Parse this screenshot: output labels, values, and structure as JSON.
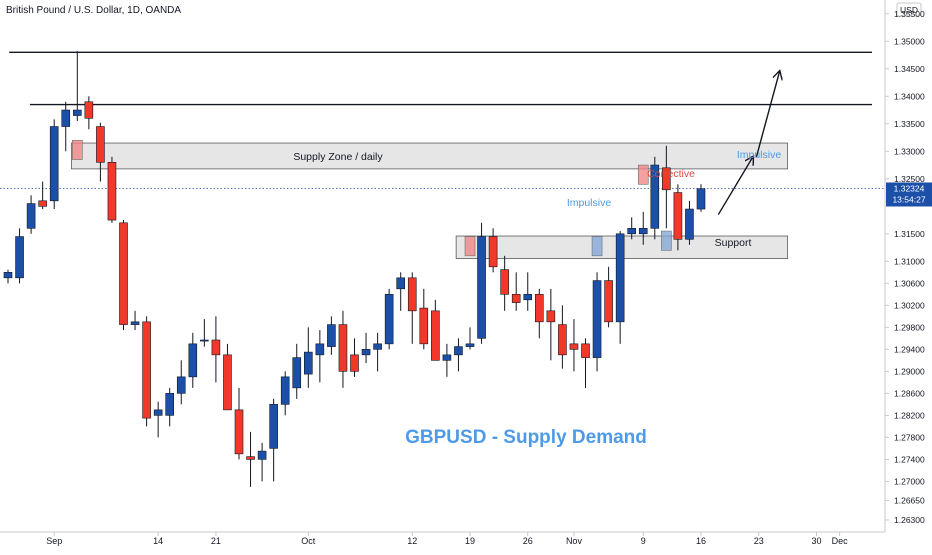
{
  "header": {
    "symbol_title": "British Pound / U.S. Dollar, 1D, OANDA",
    "currency": "USD"
  },
  "price_badge": {
    "price": "1.32324",
    "countdown": "13:54:27"
  },
  "zones": {
    "supply_label": "Supply Zone / daily",
    "support_label": "Support"
  },
  "annotations": {
    "impulsive_left": "Impulsive",
    "corrective": "Corrective",
    "impulsive_right": "Impulsive",
    "main_title": "GBPUSD - Supply Demand"
  },
  "colors": {
    "bull": "#1c50a8",
    "bear": "#f0392b",
    "wick": "#131722",
    "annotation_blue": "#4d9be8",
    "annotation_red": "#e0473c",
    "price_badge": "#1c50a8",
    "zone_fill": "#e2e2e2",
    "zone_border": "#5a5a5a"
  },
  "chart_data": {
    "type": "candlestick",
    "ylim": [
      1.2608,
      1.3575
    ],
    "y_ticks": [
      "1.35500",
      "1.35000",
      "1.34500",
      "1.34000",
      "1.33500",
      "1.33000",
      "1.32500",
      "1.32324",
      "1.31500",
      "1.31000",
      "1.30600",
      "1.30200",
      "1.29800",
      "1.29400",
      "1.29000",
      "1.28600",
      "1.28200",
      "1.27800",
      "1.27400",
      "1.27000",
      "1.26650",
      "1.26300"
    ],
    "x_labels": [
      {
        "label": "Sep",
        "day": 4
      },
      {
        "label": "14",
        "day": 13
      },
      {
        "label": "21",
        "day": 18
      },
      {
        "label": "Oct",
        "day": 26
      },
      {
        "label": "12",
        "day": 35
      },
      {
        "label": "19",
        "day": 40
      },
      {
        "label": "26",
        "day": 45
      },
      {
        "label": "Nov",
        "day": 49
      },
      {
        "label": "9",
        "day": 55
      },
      {
        "label": "16",
        "day": 60
      },
      {
        "label": "23",
        "day": 65
      },
      {
        "label": "30",
        "day": 70
      },
      {
        "label": "Dec",
        "day": 72
      }
    ],
    "horizontal_lines": [
      1.348,
      1.3385
    ],
    "current_price": 1.32324,
    "supply_zone": {
      "day_start": 5.5,
      "day_end": 67.5,
      "high": 1.3315,
      "low": 1.3268
    },
    "support_zone": {
      "day_start": 38.8,
      "day_end": 67.5,
      "high": 1.3146,
      "low": 1.3105
    },
    "highlight_boxes": [
      {
        "day": 6,
        "open": 1.332,
        "close": 1.3285,
        "dir": "bear"
      },
      {
        "day": 40,
        "open": 1.3145,
        "close": 1.311,
        "dir": "bear"
      },
      {
        "day": 51,
        "open": 1.311,
        "close": 1.3145,
        "dir": "bull"
      },
      {
        "day": 55,
        "open": 1.3275,
        "close": 1.324,
        "dir": "bear"
      },
      {
        "day": 57,
        "open": 1.312,
        "close": 1.3155,
        "dir": "bull"
      }
    ],
    "candles": [
      {
        "d": 0,
        "o": 1.307,
        "h": 1.3085,
        "l": 1.306,
        "c": 1.308
      },
      {
        "d": 1,
        "o": 1.307,
        "h": 1.316,
        "l": 1.306,
        "c": 1.3145
      },
      {
        "d": 2,
        "o": 1.316,
        "h": 1.322,
        "l": 1.315,
        "c": 1.3205
      },
      {
        "d": 3,
        "o": 1.321,
        "h": 1.3245,
        "l": 1.3195,
        "c": 1.32
      },
      {
        "d": 4,
        "o": 1.321,
        "h": 1.3358,
        "l": 1.3195,
        "c": 1.3345
      },
      {
        "d": 5,
        "o": 1.3345,
        "h": 1.339,
        "l": 1.33,
        "c": 1.3375
      },
      {
        "d": 6,
        "o": 1.3365,
        "h": 1.3482,
        "l": 1.3355,
        "c": 1.3375
      },
      {
        "d": 7,
        "o": 1.339,
        "h": 1.34,
        "l": 1.334,
        "c": 1.336
      },
      {
        "d": 8,
        "o": 1.3345,
        "h": 1.3352,
        "l": 1.3245,
        "c": 1.328
      },
      {
        "d": 9,
        "o": 1.328,
        "h": 1.329,
        "l": 1.317,
        "c": 1.3175
      },
      {
        "d": 10,
        "o": 1.317,
        "h": 1.3175,
        "l": 1.2975,
        "c": 1.2985
      },
      {
        "d": 11,
        "o": 1.2985,
        "h": 1.301,
        "l": 1.2975,
        "c": 1.299
      },
      {
        "d": 12,
        "o": 1.299,
        "h": 1.3,
        "l": 1.28,
        "c": 1.2815
      },
      {
        "d": 13,
        "o": 1.282,
        "h": 1.2845,
        "l": 1.278,
        "c": 1.283
      },
      {
        "d": 14,
        "o": 1.282,
        "h": 1.287,
        "l": 1.28,
        "c": 1.286
      },
      {
        "d": 15,
        "o": 1.286,
        "h": 1.292,
        "l": 1.284,
        "c": 1.289
      },
      {
        "d": 16,
        "o": 1.289,
        "h": 1.297,
        "l": 1.287,
        "c": 1.295
      },
      {
        "d": 17,
        "o": 1.2955,
        "h": 1.2995,
        "l": 1.2945,
        "c": 1.2957
      },
      {
        "d": 18,
        "o": 1.2957,
        "h": 1.3,
        "l": 1.288,
        "c": 1.293
      },
      {
        "d": 19,
        "o": 1.293,
        "h": 1.295,
        "l": 1.283,
        "c": 1.283
      },
      {
        "d": 20,
        "o": 1.283,
        "h": 1.287,
        "l": 1.274,
        "c": 1.275
      },
      {
        "d": 21,
        "o": 1.2745,
        "h": 1.279,
        "l": 1.269,
        "c": 1.274
      },
      {
        "d": 22,
        "o": 1.274,
        "h": 1.277,
        "l": 1.27,
        "c": 1.2755
      },
      {
        "d": 23,
        "o": 1.276,
        "h": 1.285,
        "l": 1.27,
        "c": 1.284
      },
      {
        "d": 24,
        "o": 1.284,
        "h": 1.29,
        "l": 1.282,
        "c": 1.289
      },
      {
        "d": 25,
        "o": 1.287,
        "h": 1.295,
        "l": 1.285,
        "c": 1.2925
      },
      {
        "d": 26,
        "o": 1.2895,
        "h": 1.298,
        "l": 1.287,
        "c": 1.2935
      },
      {
        "d": 27,
        "o": 1.293,
        "h": 1.2975,
        "l": 1.288,
        "c": 1.295
      },
      {
        "d": 28,
        "o": 1.2945,
        "h": 1.3,
        "l": 1.293,
        "c": 1.2985
      },
      {
        "d": 29,
        "o": 1.2985,
        "h": 1.301,
        "l": 1.287,
        "c": 1.29
      },
      {
        "d": 30,
        "o": 1.293,
        "h": 1.296,
        "l": 1.289,
        "c": 1.29
      },
      {
        "d": 31,
        "o": 1.293,
        "h": 1.297,
        "l": 1.2915,
        "c": 1.294
      },
      {
        "d": 32,
        "o": 1.294,
        "h": 1.297,
        "l": 1.29,
        "c": 1.295
      },
      {
        "d": 33,
        "o": 1.295,
        "h": 1.305,
        "l": 1.294,
        "c": 1.304
      },
      {
        "d": 34,
        "o": 1.305,
        "h": 1.308,
        "l": 1.301,
        "c": 1.307
      },
      {
        "d": 35,
        "o": 1.307,
        "h": 1.308,
        "l": 1.295,
        "c": 1.301
      },
      {
        "d": 36,
        "o": 1.3015,
        "h": 1.305,
        "l": 1.294,
        "c": 1.295
      },
      {
        "d": 37,
        "o": 1.301,
        "h": 1.303,
        "l": 1.292,
        "c": 1.292
      },
      {
        "d": 38,
        "o": 1.292,
        "h": 1.295,
        "l": 1.289,
        "c": 1.293
      },
      {
        "d": 39,
        "o": 1.293,
        "h": 1.296,
        "l": 1.29,
        "c": 1.2945
      },
      {
        "d": 40,
        "o": 1.2945,
        "h": 1.298,
        "l": 1.294,
        "c": 1.295
      },
      {
        "d": 41,
        "o": 1.296,
        "h": 1.317,
        "l": 1.295,
        "c": 1.3145
      },
      {
        "d": 42,
        "o": 1.3145,
        "h": 1.316,
        "l": 1.308,
        "c": 1.309
      },
      {
        "d": 43,
        "o": 1.3085,
        "h": 1.311,
        "l": 1.301,
        "c": 1.304
      },
      {
        "d": 44,
        "o": 1.304,
        "h": 1.308,
        "l": 1.301,
        "c": 1.3025
      },
      {
        "d": 45,
        "o": 1.303,
        "h": 1.308,
        "l": 1.301,
        "c": 1.304
      },
      {
        "d": 46,
        "o": 1.304,
        "h": 1.305,
        "l": 1.296,
        "c": 1.299
      },
      {
        "d": 47,
        "o": 1.301,
        "h": 1.305,
        "l": 1.292,
        "c": 1.299
      },
      {
        "d": 48,
        "o": 1.2985,
        "h": 1.302,
        "l": 1.2905,
        "c": 1.293
      },
      {
        "d": 49,
        "o": 1.295,
        "h": 1.2995,
        "l": 1.29,
        "c": 1.294
      },
      {
        "d": 50,
        "o": 1.295,
        "h": 1.296,
        "l": 1.287,
        "c": 1.2925
      },
      {
        "d": 51,
        "o": 1.2925,
        "h": 1.308,
        "l": 1.29,
        "c": 1.3065
      },
      {
        "d": 52,
        "o": 1.3065,
        "h": 1.309,
        "l": 1.298,
        "c": 1.299
      },
      {
        "d": 53,
        "o": 1.299,
        "h": 1.3155,
        "l": 1.295,
        "c": 1.315
      },
      {
        "d": 54,
        "o": 1.315,
        "h": 1.318,
        "l": 1.314,
        "c": 1.316
      },
      {
        "d": 55,
        "o": 1.315,
        "h": 1.319,
        "l": 1.313,
        "c": 1.316
      },
      {
        "d": 56,
        "o": 1.316,
        "h": 1.329,
        "l": 1.314,
        "c": 1.3275
      },
      {
        "d": 57,
        "o": 1.327,
        "h": 1.331,
        "l": 1.316,
        "c": 1.323
      },
      {
        "d": 58,
        "o": 1.3225,
        "h": 1.324,
        "l": 1.312,
        "c": 1.314
      },
      {
        "d": 59,
        "o": 1.314,
        "h": 1.321,
        "l": 1.313,
        "c": 1.3195
      },
      {
        "d": 60,
        "o": 1.3195,
        "h": 1.324,
        "l": 1.319,
        "c": 1.3232
      }
    ],
    "arrows": [
      {
        "from": [
          61.5,
          1.3185
        ],
        "to": [
          64.5,
          1.329
        ]
      },
      {
        "from": [
          64.8,
          1.329
        ],
        "to": [
          66.8,
          1.3445
        ]
      }
    ]
  }
}
